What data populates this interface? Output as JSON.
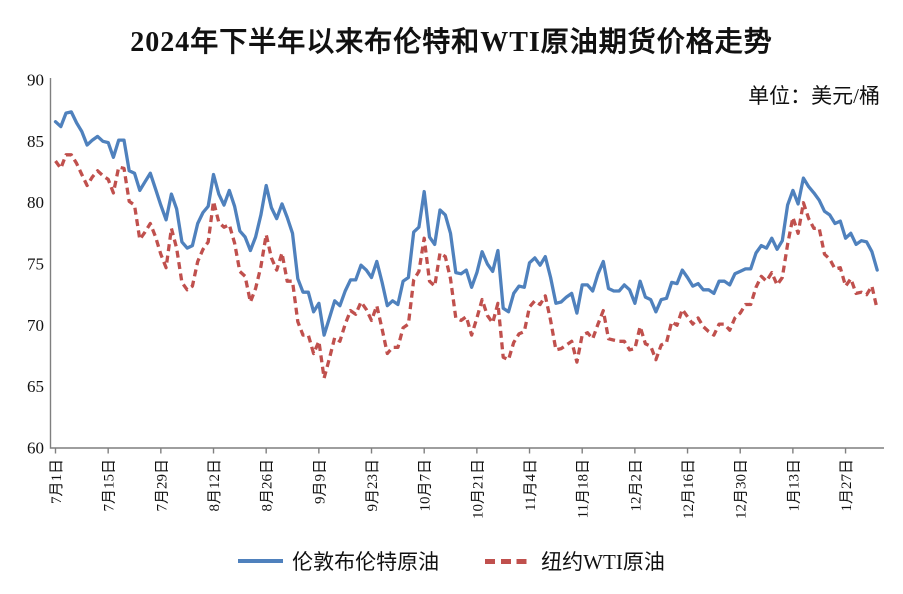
{
  "title": "2024年下半年以来布伦特和WTI原油期货价格走势",
  "unit_label": "单位：美元/桶",
  "colors": {
    "brent": "#4F81BD",
    "wti": "#C0504D",
    "axis": "#7F7F7F",
    "text": "#111111",
    "background": "#FFFFFF"
  },
  "chart_data": {
    "type": "line",
    "title": "2024年下半年以来布伦特和WTI原油期货价格走势",
    "unit": "美元/桶",
    "xlabel": "",
    "ylabel": "",
    "ylim": [
      60,
      90
    ],
    "yticks": [
      60,
      65,
      70,
      75,
      80,
      85,
      90
    ],
    "grid": false,
    "legend_position": "bottom",
    "x_tick_labels": [
      "7月1日",
      "7月15日",
      "7月29日",
      "8月12日",
      "8月26日",
      "9月9日",
      "9月23日",
      "10月7日",
      "10月21日",
      "11月4日",
      "11月18日",
      "12月2日",
      "12月16日",
      "12月30日",
      "1月13日",
      "1月27日"
    ],
    "x_tick_indices": [
      0,
      10,
      20,
      30,
      40,
      50,
      60,
      70,
      80,
      90,
      100,
      110,
      120,
      130,
      140,
      150
    ],
    "series": [
      {
        "name": "伦敦布伦特原油",
        "color": "#4F81BD",
        "style": "solid",
        "values": [
          86.6,
          86.2,
          87.3,
          87.4,
          86.5,
          85.8,
          84.7,
          85.1,
          85.4,
          85.0,
          84.9,
          83.7,
          85.1,
          85.1,
          82.6,
          82.4,
          81.0,
          81.7,
          82.4,
          81.1,
          79.8,
          78.6,
          80.7,
          79.5,
          76.8,
          76.3,
          76.5,
          78.3,
          79.2,
          79.7,
          82.3,
          80.7,
          79.8,
          81.0,
          79.7,
          77.7,
          77.2,
          76.1,
          77.2,
          79.0,
          81.4,
          79.6,
          78.7,
          79.9,
          78.8,
          77.5,
          73.8,
          72.7,
          72.7,
          71.1,
          71.8,
          69.2,
          70.6,
          72.0,
          71.6,
          72.8,
          73.7,
          73.7,
          74.9,
          74.5,
          73.9,
          75.2,
          73.5,
          71.6,
          72.0,
          71.7,
          73.6,
          73.9,
          77.6,
          78.0,
          80.9,
          77.2,
          76.6,
          79.4,
          79.0,
          77.5,
          74.3,
          74.2,
          74.5,
          73.1,
          74.3,
          76.0,
          75.0,
          74.4,
          76.1,
          71.4,
          71.1,
          72.6,
          73.2,
          73.1,
          75.1,
          75.5,
          74.9,
          75.6,
          73.9,
          71.8,
          71.9,
          72.3,
          72.6,
          71.0,
          73.3,
          73.3,
          72.8,
          74.2,
          75.2,
          73.0,
          72.8,
          72.8,
          73.3,
          72.9,
          71.8,
          73.6,
          72.3,
          72.1,
          71.1,
          72.1,
          72.2,
          73.5,
          73.4,
          74.5,
          73.9,
          73.2,
          73.4,
          72.9,
          72.9,
          72.6,
          73.6,
          73.6,
          73.3,
          74.2,
          74.4,
          74.6,
          74.6,
          75.9,
          76.5,
          76.3,
          77.1,
          76.2,
          76.9,
          79.8,
          81.0,
          79.9,
          82.0,
          81.3,
          80.8,
          80.2,
          79.3,
          79.0,
          78.3,
          78.5,
          77.1,
          77.5,
          76.6,
          76.9,
          76.8,
          76.0,
          74.5
        ]
      },
      {
        "name": "纽约WTI原油",
        "color": "#C0504D",
        "style": "dashed",
        "values": [
          83.4,
          82.8,
          83.9,
          83.9,
          83.2,
          82.3,
          81.4,
          82.1,
          82.6,
          82.2,
          81.9,
          80.8,
          82.9,
          82.8,
          80.1,
          79.8,
          77.0,
          77.6,
          78.3,
          77.2,
          75.8,
          74.7,
          77.9,
          76.3,
          73.5,
          72.9,
          73.2,
          75.2,
          76.2,
          76.8,
          80.1,
          78.4,
          78.0,
          78.2,
          76.7,
          74.4,
          74.0,
          71.9,
          73.0,
          74.8,
          77.4,
          75.5,
          74.5,
          75.9,
          73.6,
          73.6,
          70.3,
          69.2,
          69.2,
          67.7,
          68.7,
          65.7,
          67.3,
          69.0,
          68.7,
          70.1,
          71.2,
          70.9,
          71.9,
          71.3,
          70.4,
          71.6,
          69.7,
          67.7,
          68.2,
          68.2,
          69.8,
          70.1,
          73.7,
          74.4,
          77.1,
          73.6,
          73.2,
          75.9,
          75.6,
          73.8,
          70.6,
          70.4,
          70.7,
          69.2,
          70.6,
          72.1,
          70.8,
          70.2,
          71.8,
          67.4,
          67.2,
          68.6,
          69.3,
          69.5,
          71.5,
          72.0,
          71.7,
          72.4,
          70.4,
          68.0,
          68.1,
          68.4,
          68.7,
          67.0,
          69.2,
          69.4,
          68.9,
          70.1,
          71.2,
          68.9,
          68.8,
          68.7,
          68.7,
          68.0,
          68.1,
          69.9,
          68.5,
          68.3,
          67.2,
          68.4,
          68.6,
          70.3,
          70.0,
          71.3,
          70.7,
          70.1,
          70.6,
          69.9,
          69.5,
          69.2,
          70.1,
          70.1,
          69.6,
          70.6,
          71.0,
          71.7,
          71.7,
          73.1,
          74.0,
          73.6,
          74.3,
          73.3,
          73.9,
          76.6,
          78.8,
          77.5,
          80.0,
          78.7,
          77.9,
          77.9,
          75.8,
          75.4,
          74.6,
          74.7,
          73.2,
          73.8,
          72.6,
          72.7,
          72.5,
          73.2,
          71.3
        ]
      }
    ]
  }
}
